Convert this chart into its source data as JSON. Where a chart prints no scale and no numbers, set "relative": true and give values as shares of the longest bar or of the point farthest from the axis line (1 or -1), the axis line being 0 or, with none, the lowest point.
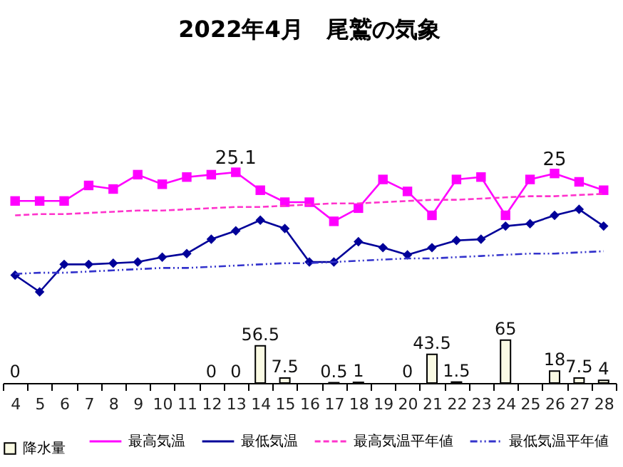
{
  "chart_data": [
    {
      "type": "line",
      "title": "2022年4月　尾鷲の気象",
      "relative": true,
      "legend": "bottom",
      "tick_labels": false,
      "categories": [
        "4",
        "5",
        "6",
        "7",
        "8",
        "9",
        "10",
        "11",
        "12",
        "13",
        "14",
        "15",
        "16",
        "17",
        "18",
        "19",
        "20",
        "21",
        "22",
        "23",
        "24",
        "25",
        "26",
        "27",
        "28"
      ],
      "series": [
        {
          "name": "最高気温",
          "color": "#ff00ff",
          "marker": "square",
          "line_style": "solid",
          "values": [
            0.76,
            0.76,
            0.76,
            0.89,
            0.86,
            0.98,
            0.9,
            0.96,
            0.98,
            1,
            0.85,
            0.75,
            0.75,
            0.59,
            0.7,
            0.94,
            0.84,
            0.64,
            0.94,
            0.96,
            0.64,
            0.94,
            0.99,
            0.92,
            0.85
          ]
        },
        {
          "name": "最低気温",
          "color": "#000099",
          "marker": "diamond",
          "line_style": "solid",
          "values": [
            0.14,
            0,
            0.23,
            0.23,
            0.24,
            0.25,
            0.29,
            0.32,
            0.44,
            0.51,
            0.6,
            0.53,
            0.25,
            0.25,
            0.42,
            0.37,
            0.31,
            0.37,
            0.43,
            0.44,
            0.55,
            0.57,
            0.64,
            0.69,
            0.55
          ]
        },
        {
          "name": "最高気温平年値",
          "color": "#ff33cc",
          "marker": "none",
          "line_style": "dashed",
          "values": [
            0.64,
            0.65,
            0.65,
            0.66,
            0.67,
            0.68,
            0.68,
            0.69,
            0.7,
            0.71,
            0.71,
            0.72,
            0.73,
            0.74,
            0.74,
            0.75,
            0.76,
            0.77,
            0.77,
            0.78,
            0.79,
            0.8,
            0.8,
            0.81,
            0.82
          ]
        },
        {
          "name": "最低気温平年値",
          "color": "#3333cc",
          "marker": "none",
          "line_style": "dotted",
          "values": [
            0.15,
            0.16,
            0.16,
            0.17,
            0.18,
            0.19,
            0.2,
            0.2,
            0.21,
            0.22,
            0.23,
            0.24,
            0.24,
            0.25,
            0.26,
            0.27,
            0.28,
            0.28,
            0.29,
            0.3,
            0.31,
            0.32,
            0.32,
            0.33,
            0.34
          ]
        }
      ],
      "annotations": [
        {
          "text": "25.1",
          "x": "13",
          "y": 1
        },
        {
          "text": "25",
          "x": "26",
          "y": 0.99
        }
      ]
    },
    {
      "type": "bar",
      "legend": "bottom",
      "categories": [
        "4",
        "5",
        "6",
        "7",
        "8",
        "9",
        "10",
        "11",
        "12",
        "13",
        "14",
        "15",
        "16",
        "17",
        "18",
        "19",
        "20",
        "21",
        "22",
        "23",
        "24",
        "25",
        "26",
        "27",
        "28"
      ],
      "series": [
        {
          "name": "降水量",
          "color": "#fbfbe4",
          "values": [
            0,
            null,
            null,
            null,
            null,
            null,
            null,
            null,
            0,
            0,
            56.5,
            7.5,
            null,
            0.5,
            1,
            null,
            0,
            43.5,
            1.5,
            null,
            65,
            null,
            18,
            7.5,
            4
          ],
          "value_labels": [
            "0",
            null,
            null,
            null,
            null,
            null,
            null,
            null,
            "0",
            "0",
            "56.5",
            "7.5",
            null,
            "0.5",
            "1",
            null,
            "0",
            "43.5",
            "1.5",
            null,
            "65",
            null,
            "18",
            "7.5",
            "4"
          ]
        }
      ]
    }
  ]
}
